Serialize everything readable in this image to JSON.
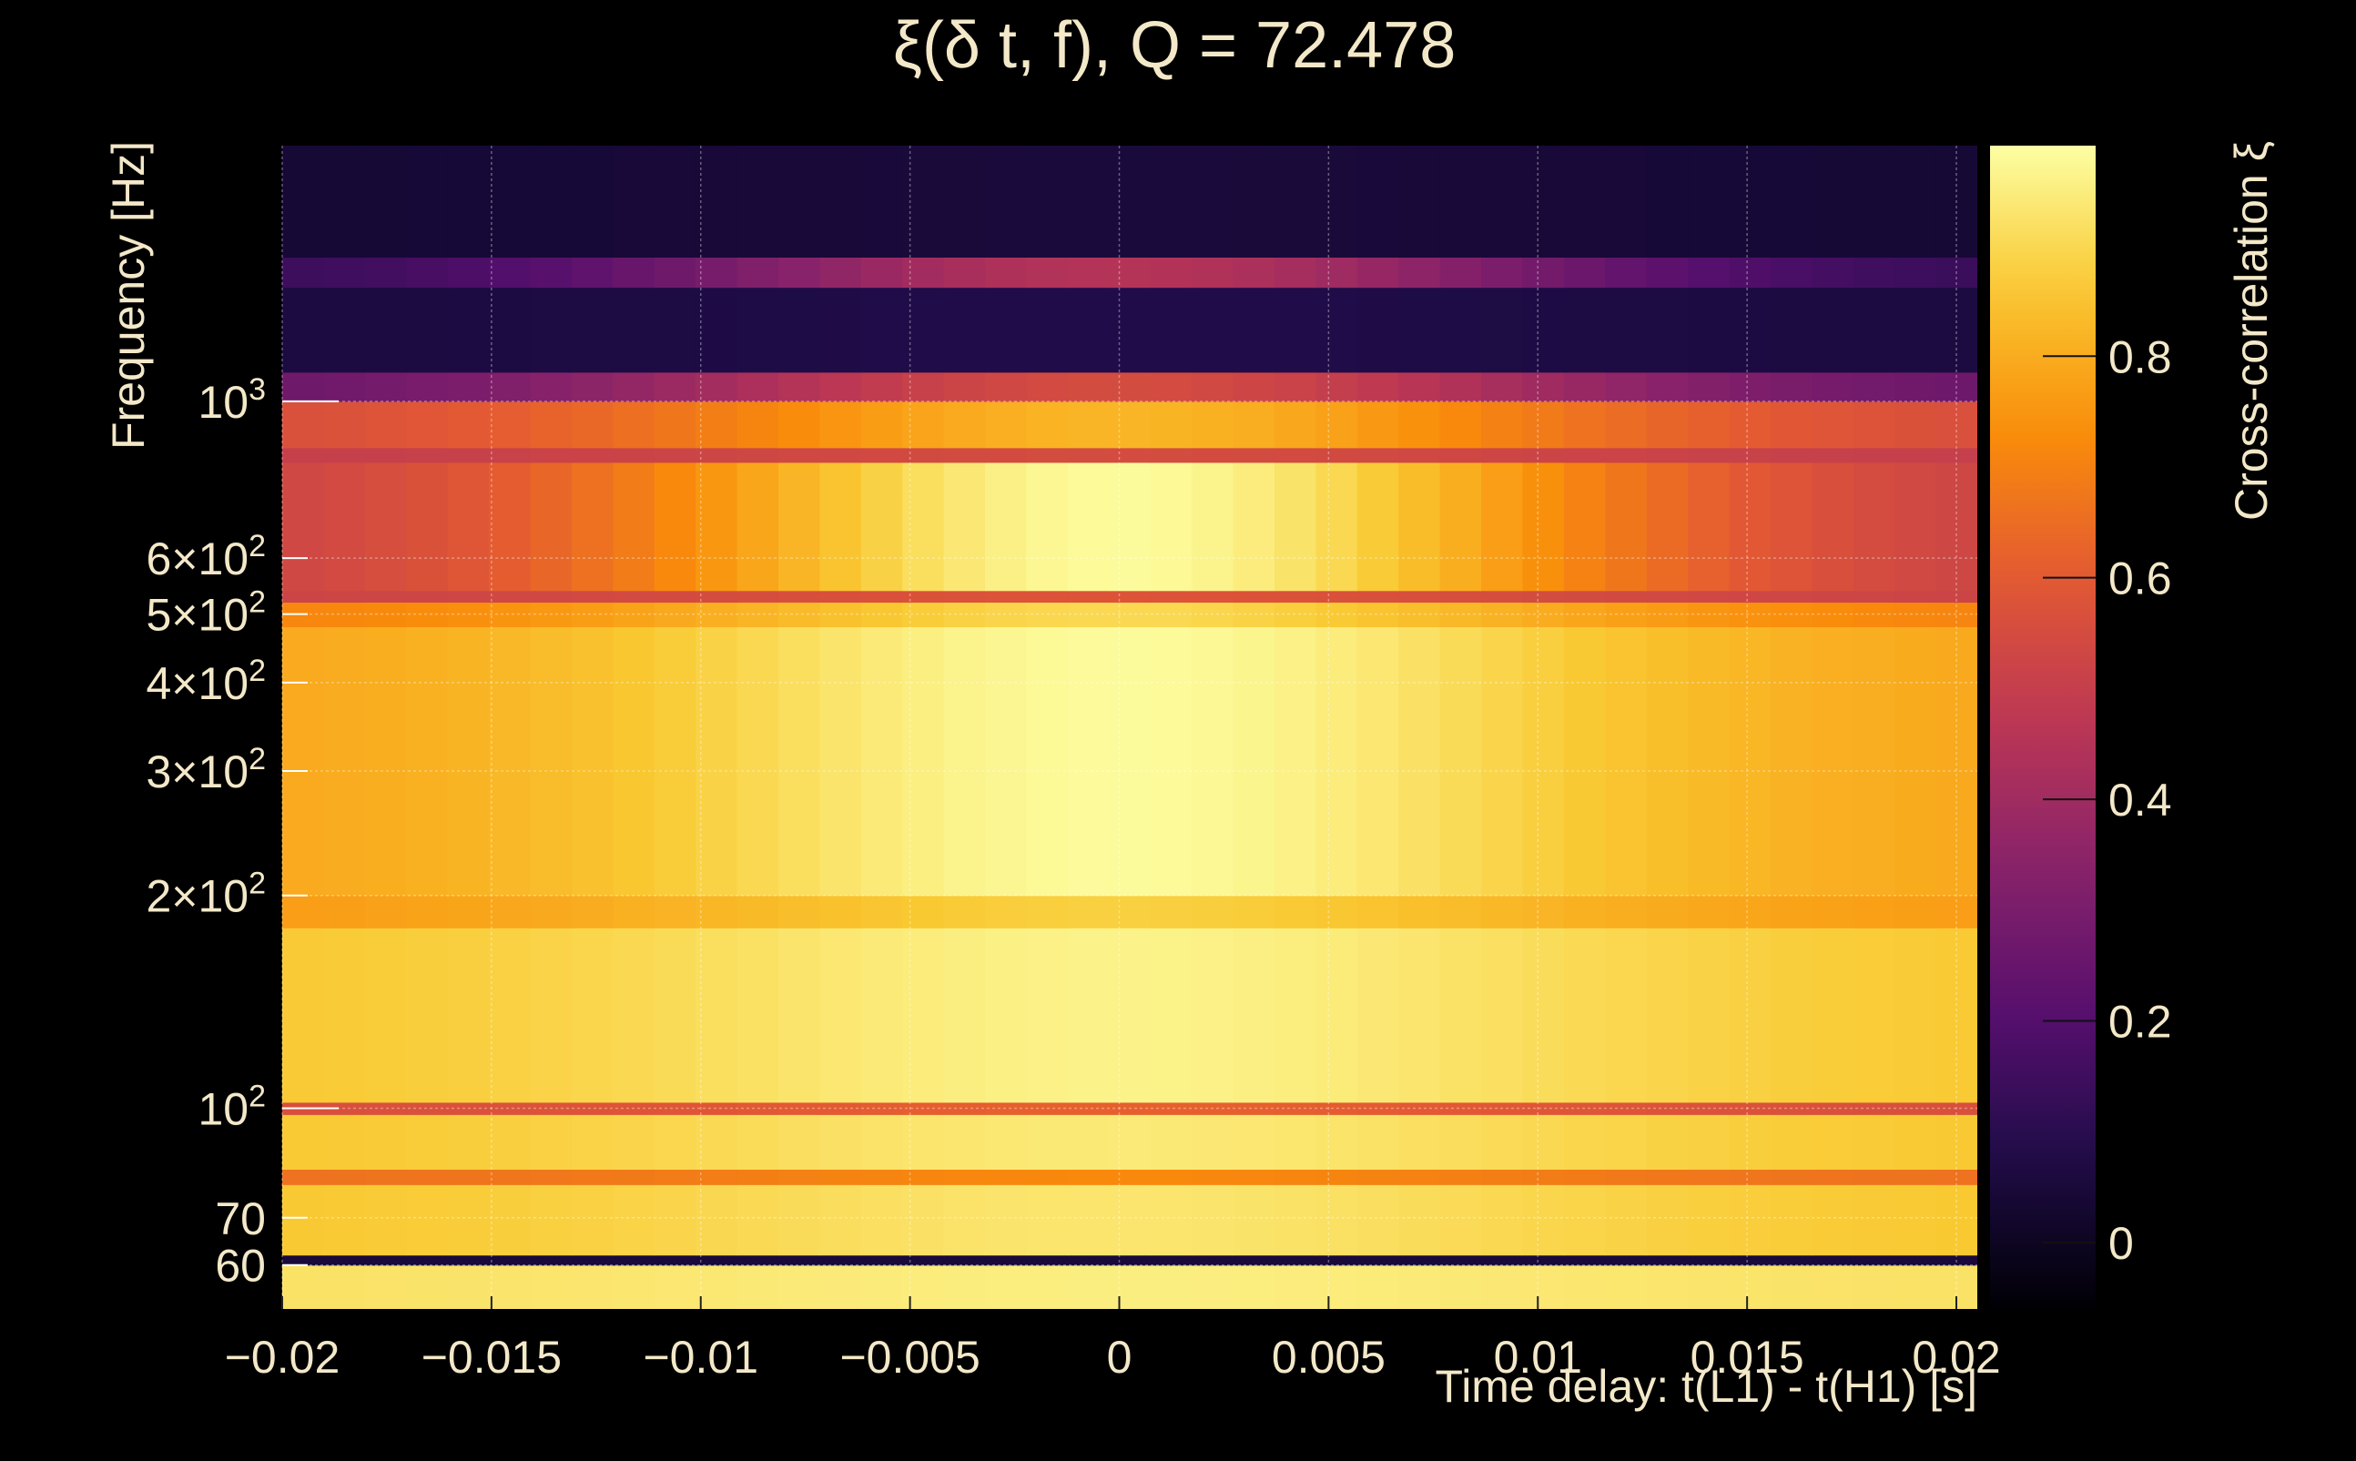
{
  "chart_data": {
    "type": "heatmap",
    "title": "ξ(δ t, f), Q = 72.478",
    "xlabel": "Time delay: t(L1) - t(H1) [s]",
    "ylabel": "Frequency [Hz]",
    "colorbar_label": "Cross-correlation ξ",
    "x_range": [
      -0.02,
      0.0205
    ],
    "y_range": [
      52,
      2300
    ],
    "y_scale": "log",
    "color_range": [
      -0.06,
      0.99
    ],
    "colormap": "inferno",
    "grid": true,
    "x_ticks": [
      {
        "value": -0.02,
        "label": "−0.02"
      },
      {
        "value": -0.015,
        "label": "−0.015"
      },
      {
        "value": -0.01,
        "label": "−0.01"
      },
      {
        "value": -0.005,
        "label": "−0.005"
      },
      {
        "value": 0,
        "label": "0"
      },
      {
        "value": 0.005,
        "label": "0.005"
      },
      {
        "value": 0.01,
        "label": "0.01"
      },
      {
        "value": 0.015,
        "label": "0.015"
      },
      {
        "value": 0.02,
        "label": "0.02"
      }
    ],
    "y_ticks": [
      {
        "value": 60,
        "base": "60",
        "exp": ""
      },
      {
        "value": 70,
        "base": "70",
        "exp": ""
      },
      {
        "value": 100,
        "base": "10",
        "exp": "2"
      },
      {
        "value": 200,
        "base": "2×10",
        "exp": "2"
      },
      {
        "value": 300,
        "base": "3×10",
        "exp": "2"
      },
      {
        "value": 400,
        "base": "4×10",
        "exp": "2"
      },
      {
        "value": 500,
        "base": "5×10",
        "exp": "2"
      },
      {
        "value": 600,
        "base": "6×10",
        "exp": "2"
      },
      {
        "value": 1000,
        "base": "10",
        "exp": "3"
      }
    ],
    "colorbar_ticks": [
      {
        "value": 0,
        "label": "0"
      },
      {
        "value": 0.2,
        "label": "0.2"
      },
      {
        "value": 0.4,
        "label": "0.4"
      },
      {
        "value": 0.6,
        "label": "0.6"
      },
      {
        "value": 0.8,
        "label": "0.8"
      }
    ],
    "frequency_bands": [
      {
        "f_low": 52,
        "f_high": 60,
        "xi_peak": 0.95,
        "xi_edge": 0.92
      },
      {
        "f_low": 60,
        "f_high": 62,
        "xi_peak": 0.05,
        "xi_edge": 0.05
      },
      {
        "f_low": 62,
        "f_high": 78,
        "xi_peak": 0.93,
        "xi_edge": 0.86
      },
      {
        "f_low": 78,
        "f_high": 82,
        "xi_peak": 0.72,
        "xi_edge": 0.66
      },
      {
        "f_low": 82,
        "f_high": 98,
        "xi_peak": 0.94,
        "xi_edge": 0.86
      },
      {
        "f_low": 98,
        "f_high": 102,
        "xi_peak": 0.62,
        "xi_edge": 0.56
      },
      {
        "f_low": 102,
        "f_high": 180,
        "xi_peak": 0.96,
        "xi_edge": 0.86
      },
      {
        "f_low": 180,
        "f_high": 200,
        "xi_peak": 0.88,
        "xi_edge": 0.76
      },
      {
        "f_low": 200,
        "f_high": 480,
        "xi_peak": 0.98,
        "xi_edge": 0.78
      },
      {
        "f_low": 480,
        "f_high": 520,
        "xi_peak": 0.9,
        "xi_edge": 0.7
      },
      {
        "f_low": 520,
        "f_high": 540,
        "xi_peak": 0.58,
        "xi_edge": 0.52
      },
      {
        "f_low": 540,
        "f_high": 820,
        "xi_peak": 0.98,
        "xi_edge": 0.5
      },
      {
        "f_low": 820,
        "f_high": 860,
        "xi_peak": 0.55,
        "xi_edge": 0.5
      },
      {
        "f_low": 860,
        "f_high": 1000,
        "xi_peak": 0.82,
        "xi_edge": 0.55
      },
      {
        "f_low": 1000,
        "f_high": 1100,
        "xi_peak": 0.55,
        "xi_edge": 0.25
      },
      {
        "f_low": 1100,
        "f_high": 1450,
        "xi_peak": 0.08,
        "xi_edge": 0.06
      },
      {
        "f_low": 1450,
        "f_high": 1600,
        "xi_peak": 0.45,
        "xi_edge": 0.12
      },
      {
        "f_low": 1600,
        "f_high": 2300,
        "xi_peak": 0.05,
        "xi_edge": 0.04
      }
    ]
  },
  "colors": {
    "background": "#000000",
    "text": "#f3e8c8",
    "grid": "#ffffff"
  }
}
